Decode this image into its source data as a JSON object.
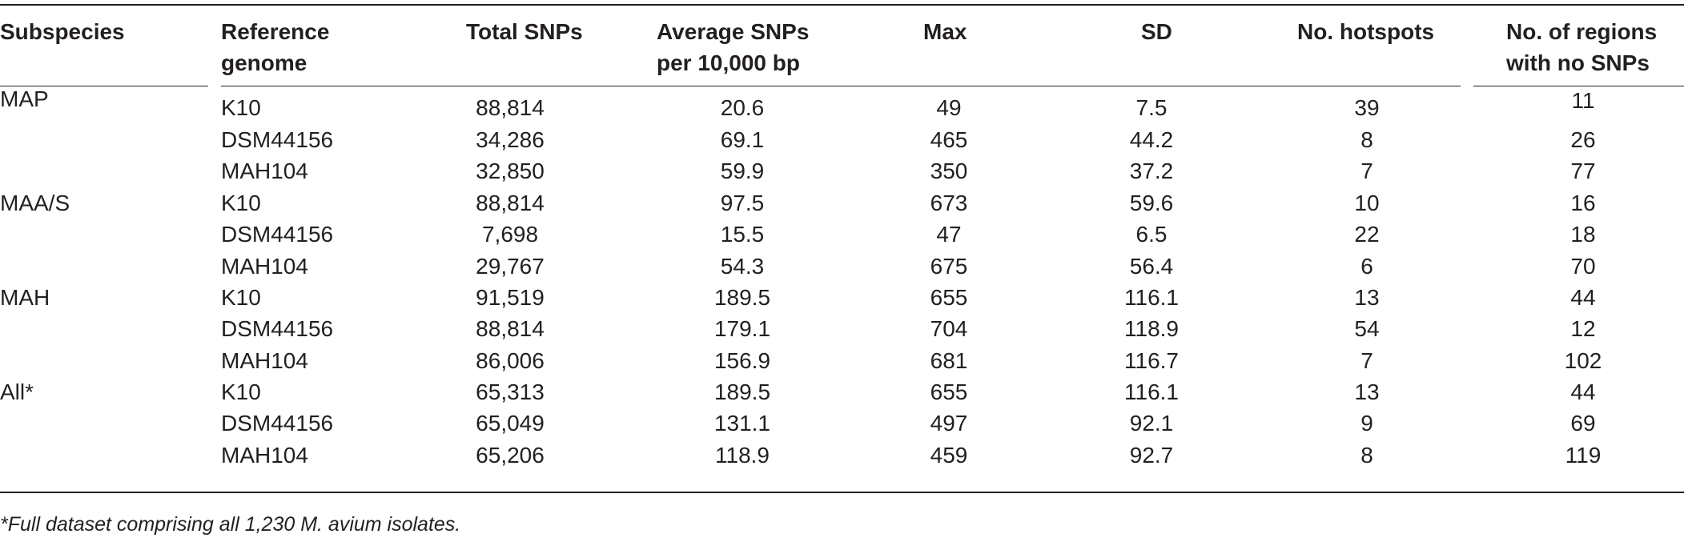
{
  "table": {
    "headers": {
      "subspecies": "Subspecies",
      "reference_genome": [
        "Reference",
        "genome"
      ],
      "total_snps": "Total SNPs",
      "average_snps": [
        "Average SNPs",
        "per 10,000 bp"
      ],
      "max": "Max",
      "sd": "SD",
      "hotspots": "No. hotspots",
      "no_snp_regions": [
        "No. of regions",
        "with no SNPs"
      ]
    },
    "groups": [
      {
        "subspecies": "MAP",
        "rows": [
          {
            "ref": "K10",
            "total": "88,814",
            "avg": "20.6",
            "max": "49",
            "sd": "7.5",
            "hot": "39",
            "nosnp": "11"
          },
          {
            "ref": "DSM44156",
            "total": "34,286",
            "avg": "69.1",
            "max": "465",
            "sd": "44.2",
            "hot": "8",
            "nosnp": "26"
          },
          {
            "ref": "MAH104",
            "total": "32,850",
            "avg": "59.9",
            "max": "350",
            "sd": "37.2",
            "hot": "7",
            "nosnp": "77"
          }
        ]
      },
      {
        "subspecies": "MAA/S",
        "rows": [
          {
            "ref": "K10",
            "total": "88,814",
            "avg": "97.5",
            "max": "673",
            "sd": "59.6",
            "hot": "10",
            "nosnp": "16"
          },
          {
            "ref": "DSM44156",
            "total": "7,698",
            "avg": "15.5",
            "max": "47",
            "sd": "6.5",
            "hot": "22",
            "nosnp": "18"
          },
          {
            "ref": "MAH104",
            "total": "29,767",
            "avg": "54.3",
            "max": "675",
            "sd": "56.4",
            "hot": "6",
            "nosnp": "70"
          }
        ]
      },
      {
        "subspecies": "MAH",
        "rows": [
          {
            "ref": "K10",
            "total": "91,519",
            "avg": "189.5",
            "max": "655",
            "sd": "116.1",
            "hot": "13",
            "nosnp": "44"
          },
          {
            "ref": "DSM44156",
            "total": "88,814",
            "avg": "179.1",
            "max": "704",
            "sd": "118.9",
            "hot": "54",
            "nosnp": "12"
          },
          {
            "ref": "MAH104",
            "total": "86,006",
            "avg": "156.9",
            "max": "681",
            "sd": "116.7",
            "hot": "7",
            "nosnp": "102"
          }
        ]
      },
      {
        "subspecies": "All*",
        "rows": [
          {
            "ref": "K10",
            "total": "65,313",
            "avg": "189.5",
            "max": "655",
            "sd": "116.1",
            "hot": "13",
            "nosnp": "44"
          },
          {
            "ref": "DSM44156",
            "total": "65,049",
            "avg": "131.1",
            "max": "497",
            "sd": "92.1",
            "hot": "9",
            "nosnp": "69"
          },
          {
            "ref": "MAH104",
            "total": "65,206",
            "avg": "118.9",
            "max": "459",
            "sd": "92.7",
            "hot": "8",
            "nosnp": "119"
          }
        ]
      }
    ],
    "footnote": "*Full dataset comprising all 1,230 M. avium isolates."
  }
}
